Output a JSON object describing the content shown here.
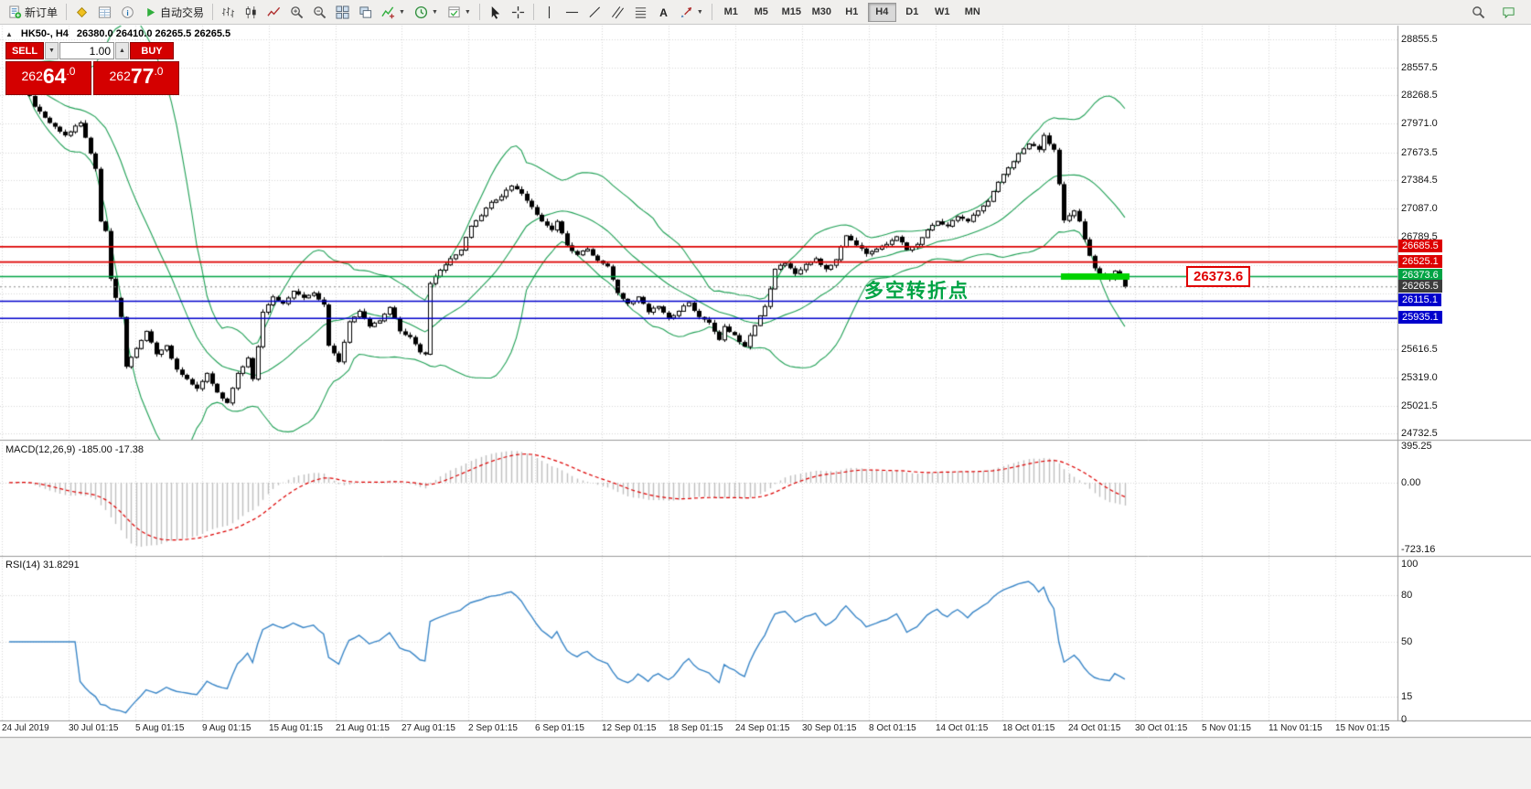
{
  "toolbar": {
    "buttons": [
      {
        "name": "new-order",
        "icon": "new-order-icon",
        "label": "新订单"
      },
      {
        "sep": true
      },
      {
        "name": "market-watch",
        "icon": "market-watch-icon"
      },
      {
        "name": "data-window",
        "icon": "data-window-icon"
      },
      {
        "name": "navigator",
        "icon": "navigator-icon"
      },
      {
        "name": "auto-trading",
        "icon": "autotrade-icon",
        "label": "自动交易"
      },
      {
        "sep": true
      },
      {
        "name": "bar-chart-mode",
        "icon": "bars-chart-icon"
      },
      {
        "name": "candle-chart-mode",
        "icon": "candles-chart-icon"
      },
      {
        "name": "line-chart-mode",
        "icon": "line-chart-icon"
      },
      {
        "name": "zoom-in",
        "icon": "zoom-in-icon"
      },
      {
        "name": "zoom-out",
        "icon": "zoom-out-icon"
      },
      {
        "name": "tile-windows",
        "icon": "tile-windows-icon"
      },
      {
        "name": "cascade-windows",
        "icon": "cascade-windows-icon"
      },
      {
        "name": "indicators",
        "icon": "indicators-icon",
        "caret": true
      },
      {
        "name": "periods",
        "icon": "clock-icon",
        "caret": true
      },
      {
        "name": "templates",
        "icon": "template-icon",
        "caret": true
      },
      {
        "sep": true
      },
      {
        "name": "cursor",
        "icon": "cursor-icon"
      },
      {
        "name": "crosshair",
        "icon": "crosshair-icon"
      },
      {
        "sep": true
      },
      {
        "name": "vertical-line",
        "icon": "vline-icon"
      },
      {
        "name": "horizontal-line",
        "icon": "hline-icon"
      },
      {
        "name": "trendline",
        "icon": "trendline-icon"
      },
      {
        "name": "channel",
        "icon": "channel-icon"
      },
      {
        "name": "fibonacci",
        "icon": "fibonacci-icon"
      },
      {
        "name": "text-label",
        "icon": "text-icon"
      },
      {
        "name": "arrows",
        "icon": "arrows-icon",
        "caret": true
      },
      {
        "sep": true
      }
    ],
    "timeframes": [
      "M1",
      "M5",
      "M15",
      "M30",
      "H1",
      "H4",
      "D1",
      "W1",
      "MN"
    ],
    "active_timeframe": "H4",
    "right_buttons": [
      {
        "name": "search",
        "icon": "search-icon"
      },
      {
        "name": "chat",
        "icon": "chat-icon"
      }
    ]
  },
  "chart": {
    "title": "HK50-, H4",
    "ohlc": "26380.0 26410.0 26265.5 26265.5"
  },
  "trade_panel": {
    "sell_label": "SELL",
    "buy_label": "BUY",
    "volume": "1.00",
    "sell_price": "26264.0",
    "buy_price": "26277.0"
  },
  "annotation": {
    "text": "多空转折点",
    "color": "#00a344"
  },
  "price_flag": {
    "text": "26373.6",
    "color": "#e00000"
  },
  "price_axis": {
    "labels": [
      "28855.5",
      "28557.5",
      "28268.5",
      "27971.0",
      "27673.5",
      "27384.5",
      "27087.0",
      "26789.5",
      "25616.5",
      "25319.0",
      "25021.5",
      "24732.5"
    ],
    "badges": [
      {
        "text": "26685.5",
        "price": 26685.5,
        "color": "#dd0000"
      },
      {
        "text": "26525.1",
        "price": 26525.1,
        "color": "#dd0000"
      },
      {
        "text": "26373.6",
        "price": 26373.6,
        "color": "#00a344"
      },
      {
        "text": "26265.5",
        "price": 26265.5,
        "color": "#3c3c3c"
      },
      {
        "text": "26115.1",
        "price": 26115.1,
        "color": "#0000cc"
      },
      {
        "text": "25935.1",
        "price": 25935.1,
        "color": "#0000cc"
      }
    ]
  },
  "levels": {
    "red": [
      26685.5,
      26525.1
    ],
    "green": [
      26373.6
    ],
    "blue": [
      26115.1,
      25935.1
    ],
    "current_price": 26265.5,
    "highlight_segment_price": 26373.6
  },
  "macd": {
    "label": "MACD(12,26,9) -185.00 -17.38",
    "axis": [
      {
        "text": "395.25",
        "value": 395.25
      },
      {
        "text": "0.00",
        "value": 0
      },
      {
        "text": "-723.16",
        "value": -723.16
      }
    ]
  },
  "rsi": {
    "label": "RSI(14) 31.8291",
    "axis": [
      {
        "text": "100",
        "value": 100
      },
      {
        "text": "80",
        "value": 80
      },
      {
        "text": "50",
        "value": 50
      },
      {
        "text": "15",
        "value": 15
      },
      {
        "text": "0",
        "value": 0
      }
    ],
    "levels": [
      80,
      50,
      15
    ]
  },
  "time_axis": {
    "labels": [
      "24 Jul 2019",
      "30 Jul 01:15",
      "5 Aug 01:15",
      "9 Aug 01:15",
      "15 Aug 01:15",
      "21 Aug 01:15",
      "27 Aug 01:15",
      "2 Sep 01:15",
      "6 Sep 01:15",
      "12 Sep 01:15",
      "18 Sep 01:15",
      "24 Sep 01:15",
      "30 Sep 01:15",
      "8 Oct 01:15",
      "14 Oct 01:15",
      "18 Oct 01:15",
      "24 Oct 01:15",
      "30 Oct 01:15",
      "5 Nov 01:15",
      "11 Nov 01:15",
      "15 Nov 01:15"
    ]
  },
  "chart_data": {
    "type": "candlestick",
    "symbol": "HK50-",
    "period": "H4",
    "bars": 221,
    "ylim": [
      24690,
      28990
    ],
    "indicators": [
      "Bollinger Bands(20,2)",
      "MACD(12,26,9)",
      "RSI(14)"
    ],
    "macd_values": {
      "main": -185.0,
      "signal": -17.38
    },
    "rsi_value": 31.8291,
    "price_waypoints": [
      [
        0,
        28420
      ],
      [
        2,
        28500
      ],
      [
        5,
        28150
      ],
      [
        8,
        27980
      ],
      [
        11,
        27850
      ],
      [
        14,
        27980
      ],
      [
        17,
        27500
      ],
      [
        18,
        26950
      ],
      [
        19,
        26850
      ],
      [
        20,
        26350
      ],
      [
        21,
        26150
      ],
      [
        22,
        25950
      ],
      [
        23,
        25430
      ],
      [
        25,
        25620
      ],
      [
        27,
        25800
      ],
      [
        29,
        25560
      ],
      [
        31,
        25650
      ],
      [
        33,
        25400
      ],
      [
        35,
        25300
      ],
      [
        37,
        25200
      ],
      [
        39,
        25360
      ],
      [
        41,
        25160
      ],
      [
        43,
        25050
      ],
      [
        45,
        25360
      ],
      [
        47,
        25520
      ],
      [
        48,
        25300
      ],
      [
        50,
        26000
      ],
      [
        52,
        26160
      ],
      [
        54,
        26090
      ],
      [
        56,
        26220
      ],
      [
        58,
        26150
      ],
      [
        60,
        26200
      ],
      [
        62,
        26080
      ],
      [
        63,
        25650
      ],
      [
        65,
        25480
      ],
      [
        67,
        25900
      ],
      [
        69,
        26010
      ],
      [
        71,
        25850
      ],
      [
        73,
        25910
      ],
      [
        75,
        26050
      ],
      [
        77,
        25800
      ],
      [
        79,
        25740
      ],
      [
        81,
        25580
      ],
      [
        82,
        25560
      ],
      [
        83,
        26300
      ],
      [
        85,
        26440
      ],
      [
        87,
        26560
      ],
      [
        89,
        26650
      ],
      [
        91,
        26900
      ],
      [
        93,
        27010
      ],
      [
        95,
        27150
      ],
      [
        97,
        27210
      ],
      [
        99,
        27320
      ],
      [
        101,
        27240
      ],
      [
        103,
        27100
      ],
      [
        105,
        26950
      ],
      [
        107,
        26860
      ],
      [
        108,
        26950
      ],
      [
        110,
        26700
      ],
      [
        112,
        26600
      ],
      [
        114,
        26660
      ],
      [
        116,
        26540
      ],
      [
        118,
        26480
      ],
      [
        120,
        26200
      ],
      [
        122,
        26090
      ],
      [
        124,
        26160
      ],
      [
        126,
        26000
      ],
      [
        128,
        26060
      ],
      [
        130,
        25940
      ],
      [
        132,
        26010
      ],
      [
        134,
        26100
      ],
      [
        136,
        25950
      ],
      [
        138,
        25890
      ],
      [
        140,
        25710
      ],
      [
        141,
        25850
      ],
      [
        143,
        25760
      ],
      [
        145,
        25640
      ],
      [
        147,
        25860
      ],
      [
        149,
        26060
      ],
      [
        151,
        26450
      ],
      [
        153,
        26510
      ],
      [
        155,
        26400
      ],
      [
        157,
        26500
      ],
      [
        159,
        26560
      ],
      [
        161,
        26450
      ],
      [
        163,
        26550
      ],
      [
        165,
        26800
      ],
      [
        167,
        26700
      ],
      [
        169,
        26610
      ],
      [
        171,
        26660
      ],
      [
        173,
        26710
      ],
      [
        175,
        26790
      ],
      [
        177,
        26650
      ],
      [
        179,
        26710
      ],
      [
        181,
        26860
      ],
      [
        183,
        26950
      ],
      [
        185,
        26900
      ],
      [
        187,
        27000
      ],
      [
        189,
        26950
      ],
      [
        191,
        27060
      ],
      [
        193,
        27160
      ],
      [
        195,
        27360
      ],
      [
        197,
        27510
      ],
      [
        199,
        27660
      ],
      [
        201,
        27760
      ],
      [
        203,
        27700
      ],
      [
        204,
        27850
      ],
      [
        205,
        27760
      ],
      [
        206,
        27700
      ],
      [
        207,
        27340
      ],
      [
        208,
        26960
      ],
      [
        209,
        27010
      ],
      [
        210,
        27060
      ],
      [
        211,
        26950
      ],
      [
        213,
        26590
      ],
      [
        214,
        26460
      ],
      [
        215,
        26400
      ],
      [
        217,
        26350
      ],
      [
        218,
        26430
      ],
      [
        220,
        26265.5
      ]
    ]
  }
}
